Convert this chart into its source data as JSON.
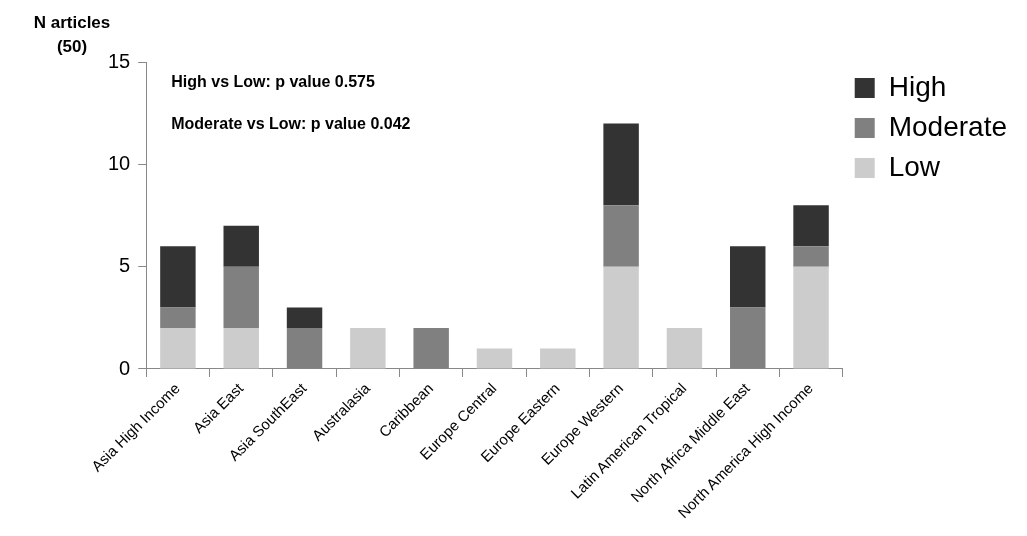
{
  "chart_data": {
    "type": "bar",
    "stacked": true,
    "ylabel": "N articles\n(50)",
    "categories": [
      "Asia High Income",
      "Asia East",
      "Asia SouthEast",
      "Australasia",
      "Caribbean",
      "Europe Central",
      "Europe Eastern",
      "Europe Western",
      "Latin American Tropical",
      "North Africa Middle East",
      "North America High Income"
    ],
    "series": [
      {
        "name": "Low",
        "color": "#cccccc",
        "values": [
          2,
          2,
          0,
          2,
          0,
          1,
          1,
          5,
          2,
          0,
          5
        ]
      },
      {
        "name": "Moderate",
        "color": "#808080",
        "values": [
          1,
          3,
          2,
          0,
          2,
          0,
          0,
          3,
          0,
          3,
          1
        ]
      },
      {
        "name": "High",
        "color": "#333333",
        "values": [
          3,
          2,
          1,
          0,
          0,
          0,
          0,
          4,
          0,
          3,
          2
        ]
      }
    ],
    "ylim": [
      0,
      15
    ],
    "yticks": [
      0,
      5,
      10,
      15
    ],
    "grid": false,
    "legend": "top right",
    "annotations": [
      "High vs Low: p value 0.575",
      "Moderate vs Low: p value 0.042"
    ]
  }
}
